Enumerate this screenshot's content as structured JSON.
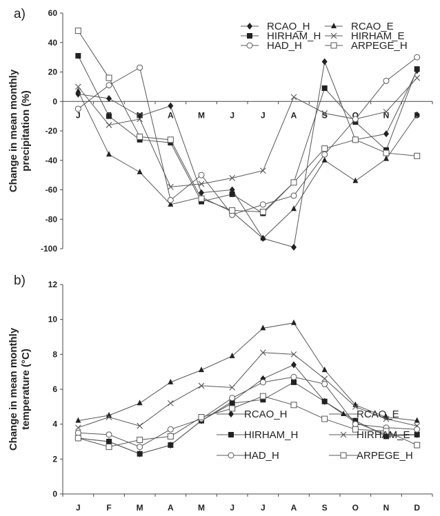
{
  "chart_data": [
    {
      "type": "line",
      "panel_label": "a)",
      "ylabel": "Change in mean monthly precipitation (%)",
      "ylabel_lines": [
        "Change in mean monthly",
        "precipitation (%)"
      ],
      "categories": [
        "J",
        "F",
        "M",
        "A",
        "M",
        "J",
        "J",
        "A",
        "S",
        "O",
        "N",
        "D"
      ],
      "ylim": [
        -100,
        60
      ],
      "yticks": [
        -100,
        -80,
        -60,
        -40,
        -20,
        0,
        20,
        40,
        60
      ],
      "grid": false,
      "zero_line": true,
      "legend_position": "top-right",
      "series": [
        {
          "name": "RCAO_H",
          "marker": "diamond",
          "values": [
            5,
            2,
            -10,
            -3,
            -62,
            -60,
            -93,
            -99,
            27,
            -26,
            -22,
            21
          ]
        },
        {
          "name": "RCAO_E",
          "marker": "triangle",
          "values": [
            7,
            -36,
            -48,
            -70,
            -65,
            -75,
            -93,
            -73,
            -40,
            -54,
            -39,
            -9
          ]
        },
        {
          "name": "HIRHAM_H",
          "marker": "square",
          "values": [
            31,
            -10,
            -26,
            -28,
            -68,
            -63,
            -76,
            -55,
            9,
            -14,
            -33,
            22
          ]
        },
        {
          "name": "HIRHAM_E",
          "marker": "cross",
          "values": [
            10,
            -16,
            -12,
            -58,
            -56,
            -52,
            -47,
            3,
            -8,
            -12,
            -7,
            16
          ]
        },
        {
          "name": "HAD_H",
          "marker": "circle",
          "values": [
            -5,
            11,
            23,
            -67,
            -50,
            -77,
            -70,
            -64,
            -36,
            -12,
            14,
            30
          ]
        },
        {
          "name": "ARPEGE_H",
          "marker": "square-open",
          "values": [
            48,
            16,
            -24,
            -26,
            -66,
            -74,
            -75,
            -55,
            -32,
            -26,
            -35,
            -37
          ]
        }
      ]
    },
    {
      "type": "line",
      "panel_label": "b)",
      "ylabel": "Change in mean monthly temperature (°C)",
      "ylabel_lines": [
        "Change in mean monthly",
        "temperature (°C)"
      ],
      "categories": [
        "J",
        "F",
        "M",
        "A",
        "M",
        "J",
        "J",
        "A",
        "S",
        "O",
        "N",
        "D"
      ],
      "ylim": [
        0,
        12
      ],
      "yticks": [
        0,
        2,
        4,
        6,
        8,
        10,
        12
      ],
      "grid": false,
      "legend_position": "bottom-right",
      "series": [
        {
          "name": "RCAO_H",
          "marker": "diamond",
          "values": [
            3.2,
            3.0,
            2.3,
            2.8,
            4.2,
            5.3,
            6.6,
            7.4,
            5.3,
            4.1,
            3.4,
            3.4
          ]
        },
        {
          "name": "RCAO_E",
          "marker": "triangle",
          "values": [
            4.2,
            4.5,
            5.2,
            6.4,
            7.1,
            7.9,
            9.5,
            9.8,
            7.1,
            5.1,
            4.4,
            4.2
          ]
        },
        {
          "name": "HIRHAM_H",
          "marker": "square",
          "values": [
            3.2,
            3.0,
            2.3,
            2.8,
            4.2,
            5.2,
            5.4,
            6.4,
            5.3,
            4.2,
            3.3,
            3.4
          ]
        },
        {
          "name": "HIRHAM_E",
          "marker": "cross",
          "values": [
            3.8,
            4.4,
            3.9,
            5.2,
            6.2,
            6.1,
            8.1,
            8.0,
            6.6,
            5.0,
            4.3,
            3.9
          ]
        },
        {
          "name": "HAD_H",
          "marker": "circle",
          "values": [
            3.5,
            3.4,
            2.7,
            3.7,
            4.3,
            5.5,
            6.4,
            6.7,
            6.3,
            4.0,
            3.8,
            3.7
          ]
        },
        {
          "name": "ARPEGE_H",
          "marker": "square-open",
          "values": [
            3.2,
            2.7,
            3.1,
            3.3,
            4.4,
            4.9,
            5.6,
            5.1,
            4.3,
            3.7,
            3.6,
            2.8
          ]
        }
      ]
    }
  ]
}
